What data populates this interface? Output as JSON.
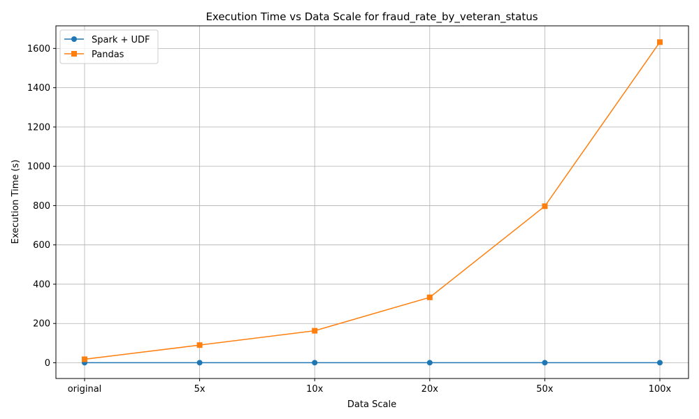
{
  "chart_data": {
    "type": "line",
    "title": "Execution Time vs Data Scale for fraud_rate_by_veteran_status",
    "xlabel": "Data Scale",
    "ylabel": "Execution Time (s)",
    "categories": [
      "original",
      "5x",
      "10x",
      "20x",
      "50x",
      "100x"
    ],
    "ylim": [
      -80,
      1715
    ],
    "yticks": [
      0,
      200,
      400,
      600,
      800,
      1000,
      1200,
      1400,
      1600
    ],
    "grid": true,
    "legend_position": "top-left",
    "series": [
      {
        "name": "Spark + UDF",
        "values": [
          0.5,
          0.5,
          0.5,
          0.5,
          0.5,
          0.5
        ],
        "color": "#1f77b4",
        "marker": "circle"
      },
      {
        "name": "Pandas",
        "values": [
          18,
          90,
          163,
          333,
          797,
          1632
        ],
        "color": "#ff7f0e",
        "marker": "square"
      }
    ]
  }
}
